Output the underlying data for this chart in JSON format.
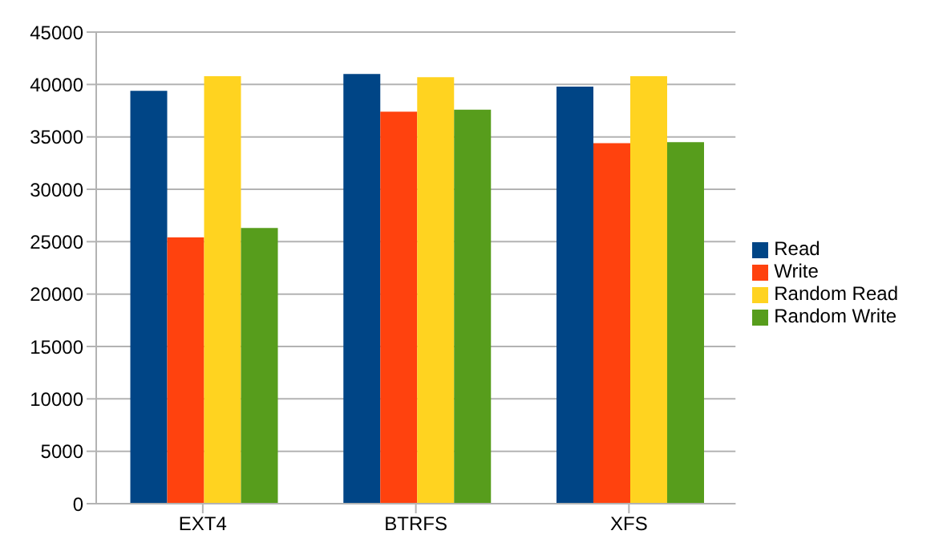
{
  "chart_data": {
    "type": "bar",
    "categories": [
      "EXT4",
      "BTRFS",
      "XFS"
    ],
    "series": [
      {
        "name": "Read",
        "color": "#004586",
        "values": [
          39400,
          41000,
          39800
        ]
      },
      {
        "name": "Write",
        "color": "#ff420e",
        "values": [
          25400,
          37400,
          34400
        ]
      },
      {
        "name": "Random Read",
        "color": "#ffd320",
        "values": [
          40800,
          40700,
          40800
        ]
      },
      {
        "name": "Random Write",
        "color": "#579d1c",
        "values": [
          26300,
          37600,
          34500
        ]
      }
    ],
    "ylim": [
      0,
      45000
    ],
    "yticks": [
      0,
      5000,
      10000,
      15000,
      20000,
      25000,
      30000,
      35000,
      40000,
      45000
    ],
    "grid": "y",
    "legend": "right"
  }
}
